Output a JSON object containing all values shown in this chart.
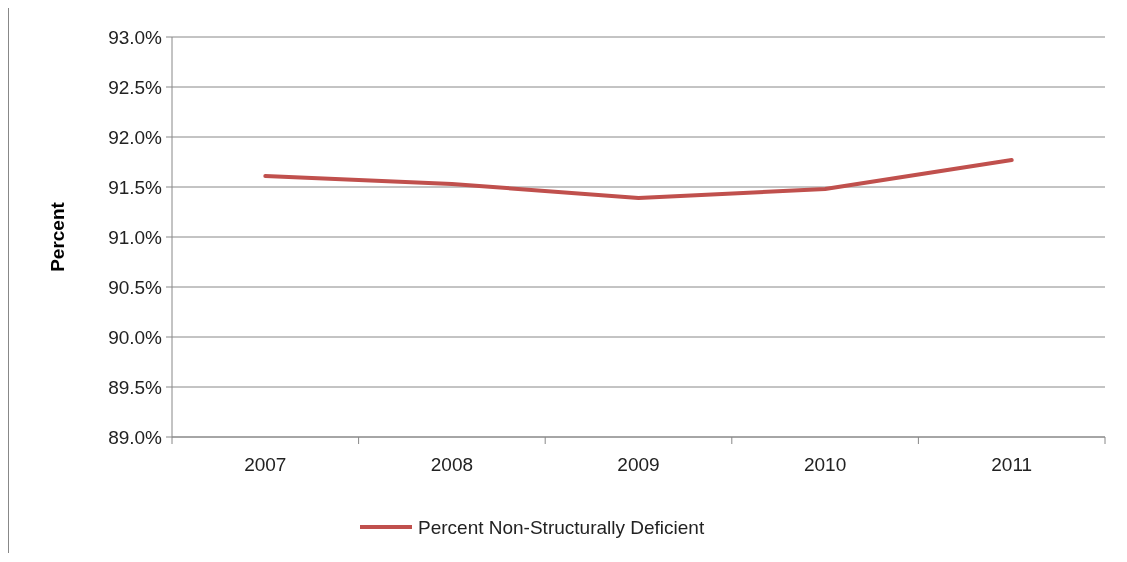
{
  "chart_data": {
    "type": "line",
    "ylabel": "Percent",
    "categories": [
      "2007",
      "2008",
      "2009",
      "2010",
      "2011"
    ],
    "series": [
      {
        "name": "Percent Non-Structurally Deficient",
        "color": "#c0504d",
        "values": [
          91.61,
          91.53,
          91.39,
          91.48,
          91.77
        ]
      }
    ],
    "ylim": [
      89,
      93
    ],
    "yticks": [
      {
        "value": 89,
        "label": "89.0%"
      },
      {
        "value": 89.5,
        "label": "89.5%"
      },
      {
        "value": 90,
        "label": "90.0%"
      },
      {
        "value": 90.5,
        "label": "90.5%"
      },
      {
        "value": 91,
        "label": "91.0%"
      },
      {
        "value": 91.5,
        "label": "91.5%"
      },
      {
        "value": 92,
        "label": "92.0%"
      },
      {
        "value": 92.5,
        "label": "92.5%"
      },
      {
        "value": 93,
        "label": "93.0%"
      }
    ],
    "grid": "y",
    "legend": "bottom",
    "marker": "none",
    "line_style": "solid"
  }
}
